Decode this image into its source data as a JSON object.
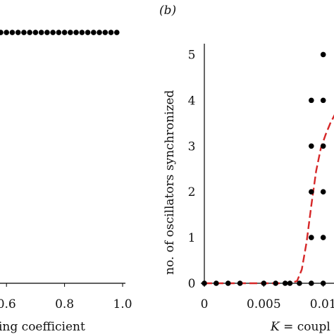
{
  "chart_data": [
    {
      "panel": "a",
      "type": "scatter",
      "xlabel_fragment": "ing coefficient",
      "x_tick_labels": [
        "0.6",
        "0.8",
        "1.0"
      ],
      "xlim": [
        0.5,
        1.0
      ],
      "ylim": [
        0,
        1.0
      ],
      "series": [
        {
          "marker_color": "#000000",
          "points": [
            [
              0.5,
              0.96
            ],
            [
              0.51,
              0.96
            ],
            [
              0.52,
              0.955
            ],
            [
              0.53,
              0.96
            ],
            [
              0.54,
              0.96
            ],
            [
              0.56,
              0.96
            ],
            [
              0.58,
              0.96
            ],
            [
              0.6,
              0.96
            ],
            [
              0.62,
              0.96
            ],
            [
              0.64,
              0.96
            ],
            [
              0.66,
              0.96
            ],
            [
              0.68,
              0.96
            ],
            [
              0.7,
              0.96
            ],
            [
              0.72,
              0.96
            ],
            [
              0.74,
              0.96
            ],
            [
              0.76,
              0.96
            ],
            [
              0.78,
              0.96
            ],
            [
              0.8,
              0.96
            ],
            [
              0.82,
              0.96
            ],
            [
              0.84,
              0.96
            ],
            [
              0.86,
              0.96
            ],
            [
              0.88,
              0.96
            ],
            [
              0.9,
              0.96
            ],
            [
              0.92,
              0.96
            ],
            [
              0.94,
              0.96
            ],
            [
              0.96,
              0.96
            ],
            [
              0.98,
              0.96
            ]
          ]
        }
      ]
    },
    {
      "panel": "b",
      "panel_label": "(b)",
      "type": "scatter",
      "ylabel": "no. of oscillators synchronized",
      "xlabel_var": "K",
      "xlabel_rest": " = coupl",
      "y_ticks": [
        0,
        1,
        2,
        3,
        4,
        5
      ],
      "x_ticks": [
        0,
        0.005,
        0.01
      ],
      "x_tick_labels": [
        "0",
        "0.005",
        "0.01"
      ],
      "xlim": [
        0,
        0.0115
      ],
      "ylim": [
        0,
        5.3
      ],
      "points": [
        [
          0,
          0
        ],
        [
          0.001,
          0
        ],
        [
          0.002,
          0
        ],
        [
          0.003,
          0
        ],
        [
          0.005,
          0
        ],
        [
          0.006,
          0
        ],
        [
          0.0068,
          0
        ],
        [
          0.0072,
          0
        ],
        [
          0.008,
          0
        ],
        [
          0.009,
          0
        ],
        [
          0.009,
          1
        ],
        [
          0.009,
          2
        ],
        [
          0.009,
          3
        ],
        [
          0.009,
          4
        ],
        [
          0.01,
          0
        ],
        [
          0.01,
          1
        ],
        [
          0.01,
          2
        ],
        [
          0.01,
          3
        ],
        [
          0.01,
          4
        ],
        [
          0.01,
          5
        ]
      ],
      "fit_curve": {
        "style": "dashed",
        "color": "#d62728",
        "points": [
          [
            0,
            0
          ],
          [
            0.002,
            0
          ],
          [
            0.004,
            0
          ],
          [
            0.006,
            0
          ],
          [
            0.0072,
            0
          ],
          [
            0.0078,
            0.05
          ],
          [
            0.0082,
            0.3
          ],
          [
            0.0086,
            0.9
          ],
          [
            0.009,
            1.7
          ],
          [
            0.0094,
            2.45
          ],
          [
            0.0098,
            2.95
          ],
          [
            0.0102,
            3.25
          ],
          [
            0.0106,
            3.5
          ],
          [
            0.011,
            3.7
          ],
          [
            0.0115,
            3.85
          ]
        ]
      }
    }
  ]
}
